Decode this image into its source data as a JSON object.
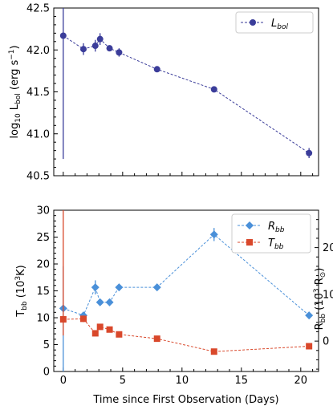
{
  "chart_data": [
    {
      "type": "line",
      "title": "",
      "xlabel": "",
      "ylabel": "log₁₀ L_bol (erg s⁻¹)",
      "ylabel_parts": {
        "main": "log",
        "sub": "10",
        "mid": " L",
        "sub2": "bol",
        "unit": " (erg s",
        "sup": "−1",
        "close": ")"
      },
      "xlim": [
        -0.8,
        21.5
      ],
      "ylim": [
        40.5,
        42.5
      ],
      "yticks": [
        40.5,
        41.0,
        41.5,
        42.0,
        42.5
      ],
      "ytick_labels": [
        "40.5",
        "41.0",
        "41.5",
        "42.0",
        "42.5"
      ],
      "xticks": [
        0,
        5,
        10,
        15,
        20
      ],
      "grid": false,
      "legend": {
        "placement": "top-right",
        "entries": [
          {
            "label": "L",
            "sub": "bol"
          }
        ]
      },
      "series": [
        {
          "name": "L_bol",
          "color": "#3b3d9a",
          "marker": "circle",
          "x": [
            0,
            1.7,
            2.7,
            3.1,
            3.9,
            4.7,
            7.9,
            12.7,
            20.7
          ],
          "y": [
            42.17,
            42.01,
            42.05,
            42.13,
            42.02,
            41.97,
            41.77,
            41.53,
            40.77
          ],
          "yerr_lower": [
            1.47,
            0.07,
            0.07,
            0.07,
            0.03,
            0.05,
            0.03,
            0.03,
            0.06
          ],
          "yerr_upper": [
            0.36,
            0.07,
            0.07,
            0.07,
            0.03,
            0.05,
            0.03,
            0.03,
            0.06
          ]
        }
      ]
    },
    {
      "type": "line",
      "title": "",
      "xlabel": "Time since First Observation (Days)",
      "ylabel_left": {
        "main": "T",
        "sub": "bb",
        "unit": " (10",
        "sup": "3",
        "close": "K)"
      },
      "ylabel_right": {
        "main": "R",
        "sub": "bb",
        "unit": " (10",
        "sup": "3",
        "close": " R",
        "sym": "⊙",
        "end": ")"
      },
      "xlim": [
        -0.8,
        21.5
      ],
      "ylim_left": [
        0,
        30
      ],
      "yticks_left": [
        0,
        5,
        10,
        15,
        20,
        25,
        30
      ],
      "ylim_right": [
        -6.5,
        28
      ],
      "yticks_right": [
        0,
        10,
        20
      ],
      "xticks": [
        0,
        5,
        10,
        15,
        20
      ],
      "xtick_labels": [
        "0",
        "5",
        "10",
        "15",
        "20"
      ],
      "grid": false,
      "legend": {
        "placement": "top-right",
        "entries": [
          {
            "label": "R",
            "sub": "bb"
          },
          {
            "label": "T",
            "sub": "bb"
          }
        ]
      },
      "series": [
        {
          "name": "R_bb",
          "axis": "right",
          "color": "#4a90d9",
          "marker": "diamond",
          "x": [
            0,
            1.7,
            2.7,
            3.1,
            3.9,
            4.7,
            7.9,
            12.7,
            20.7
          ],
          "y": [
            7.0,
            5.5,
            11.5,
            8.3,
            8.3,
            11.5,
            11.5,
            22.8,
            5.5
          ],
          "yerr_lower": [
            19.0,
            0.4,
            1.5,
            0.6,
            0.5,
            0.5,
            0.5,
            1.4,
            0.3
          ],
          "yerr_upper": [
            9.0,
            0.4,
            1.5,
            0.6,
            0.5,
            0.5,
            0.5,
            1.4,
            0.3
          ]
        },
        {
          "name": "T_bb",
          "axis": "left",
          "color": "#d9482b",
          "marker": "square",
          "x": [
            0,
            1.7,
            2.7,
            3.1,
            3.9,
            4.7,
            7.9,
            12.7,
            20.7
          ],
          "y": [
            9.7,
            9.8,
            7.1,
            8.3,
            7.8,
            6.9,
            6.1,
            3.7,
            4.7
          ],
          "yerr_lower": [
            3.0,
            0.6,
            0.5,
            0.3,
            0.3,
            0.3,
            0.2,
            0.2,
            0.2
          ],
          "yerr_upper": [
            20.3,
            0.6,
            0.5,
            0.3,
            0.3,
            0.3,
            0.2,
            0.2,
            0.2
          ]
        }
      ]
    }
  ]
}
